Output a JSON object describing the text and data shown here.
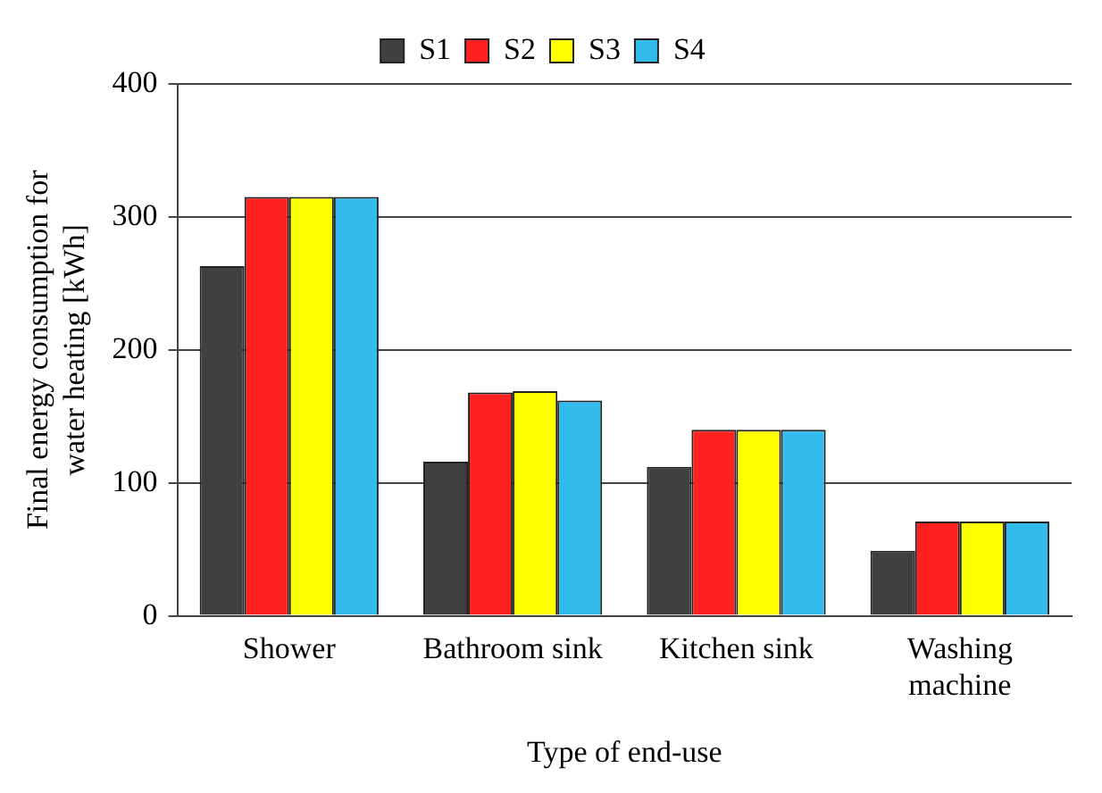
{
  "chart_data": {
    "type": "bar",
    "xlabel": "Type of end-use",
    "ylabel": "Final energy consumption for water heating [kWh]",
    "categories": [
      "Shower",
      "Bathroom sink",
      "Kitchen sink",
      "Washing machine"
    ],
    "series": [
      {
        "name": "S1",
        "color": "#404040",
        "values": [
          263,
          116,
          112,
          49
        ]
      },
      {
        "name": "S2",
        "color": "#ff2020",
        "values": [
          315,
          168,
          140,
          71
        ]
      },
      {
        "name": "S3",
        "color": "#ffff00",
        "values": [
          315,
          169,
          140,
          71
        ]
      },
      {
        "name": "S4",
        "color": "#33bbee",
        "values": [
          315,
          162,
          140,
          71
        ]
      }
    ],
    "ylim": [
      0,
      400
    ],
    "yticks": [
      0,
      100,
      200,
      300,
      400
    ],
    "grid": "y",
    "legend": "top"
  }
}
